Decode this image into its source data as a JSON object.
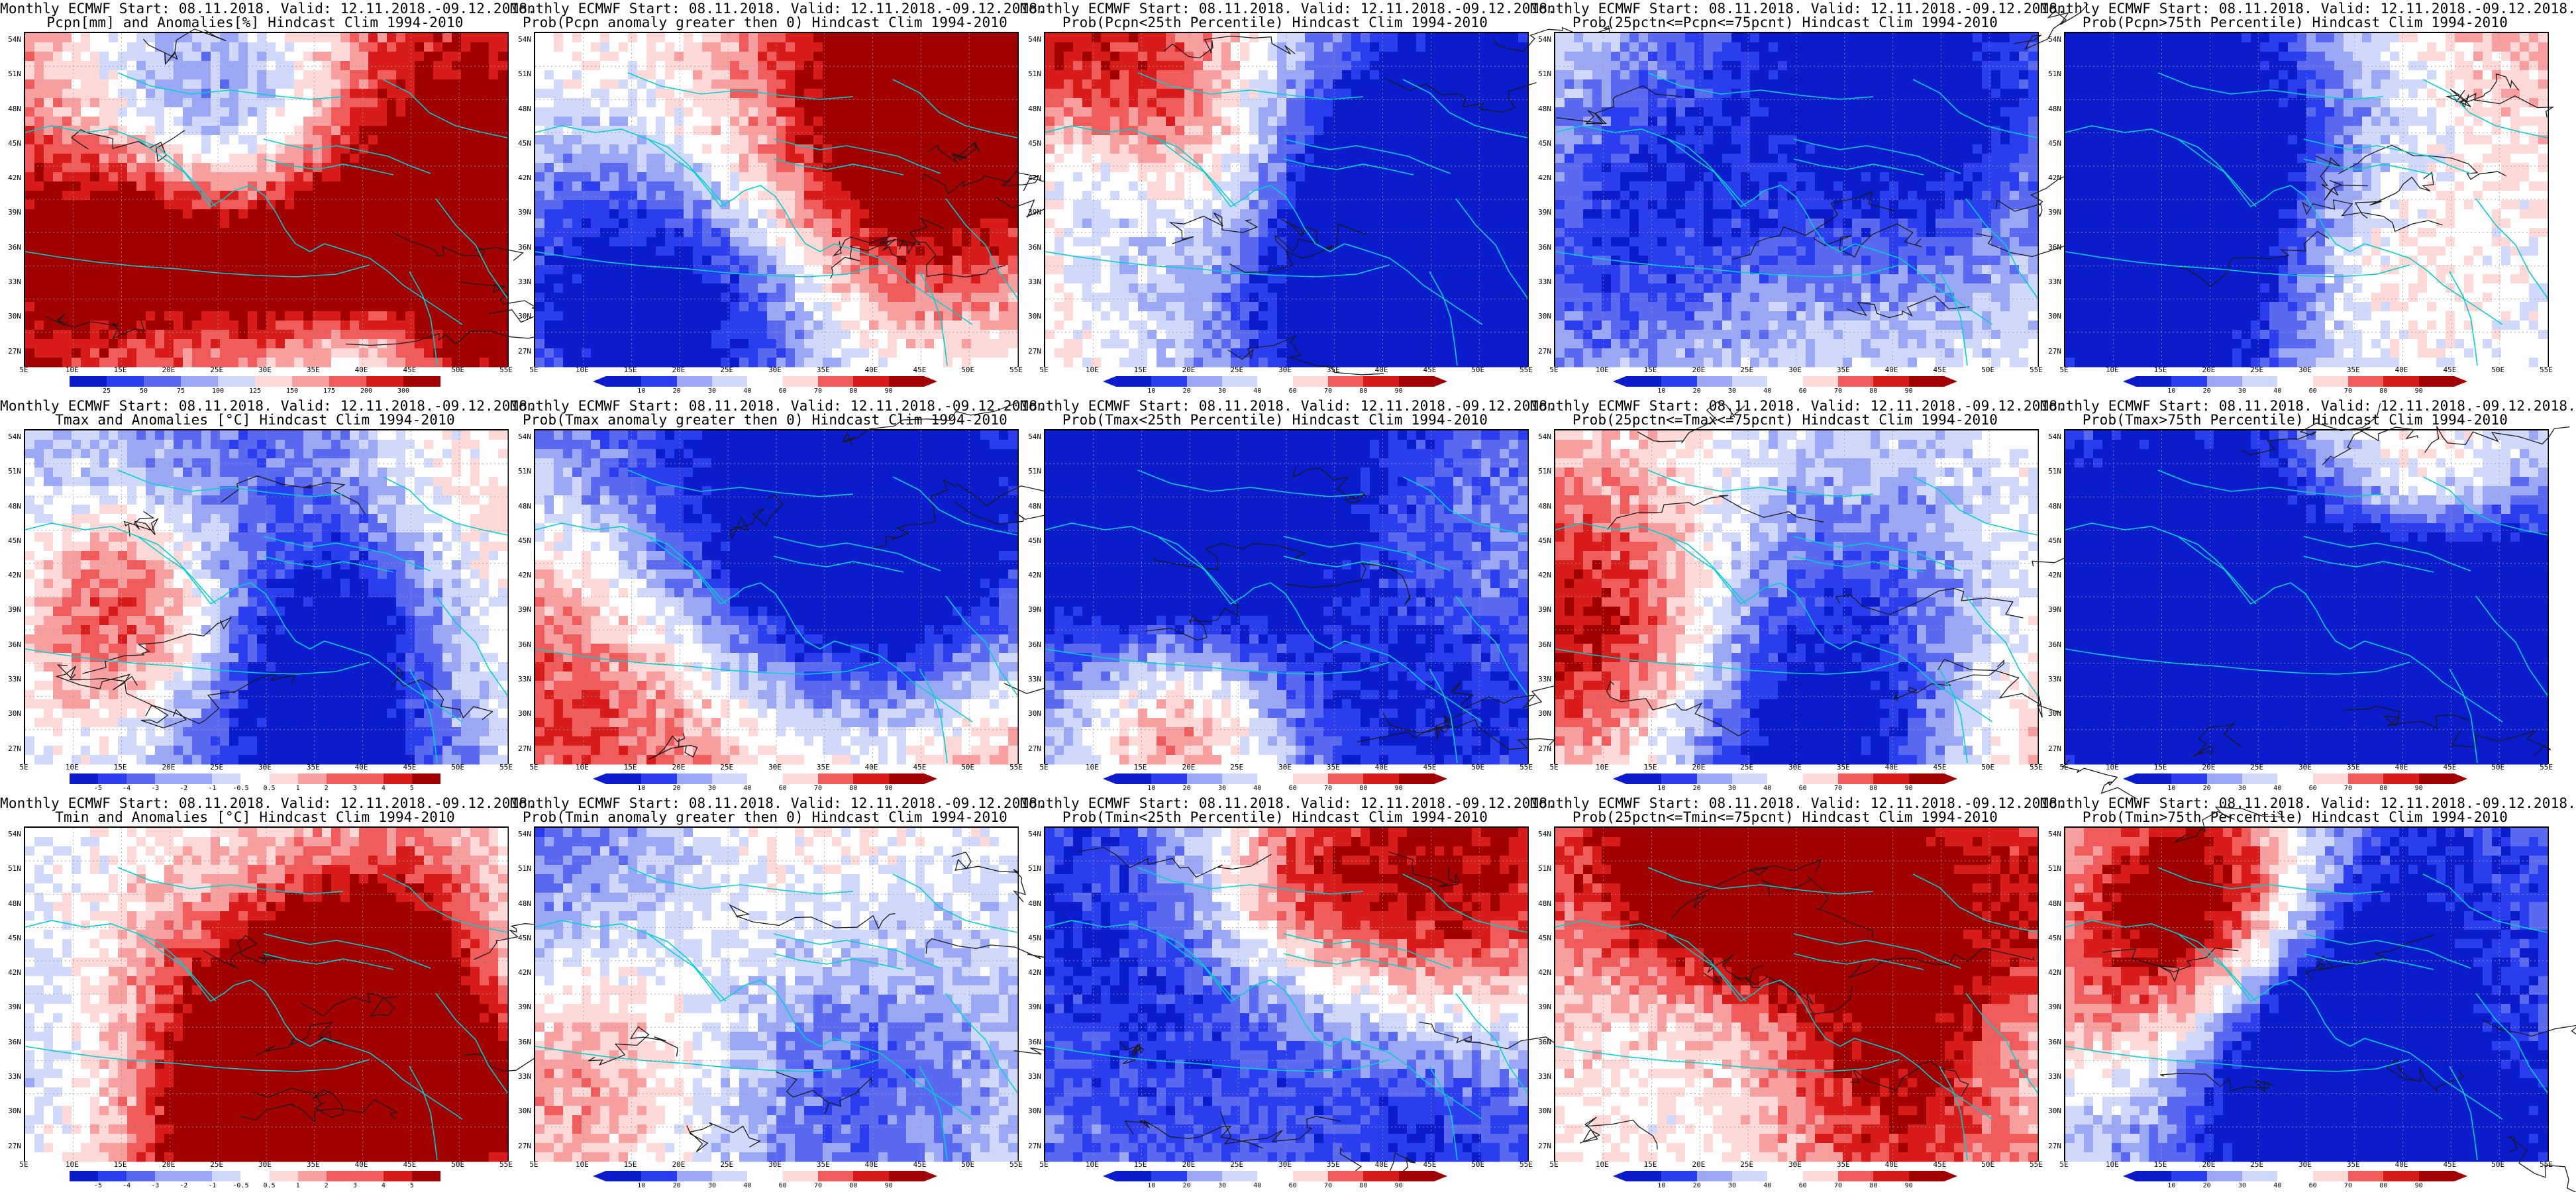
{
  "header_prefix": "Monthly ECMWF Start: 08.11.2018. Valid: 12.11.2018.-09.12.2018.",
  "lat_labels": [
    "54N",
    "51N",
    "48N",
    "45N",
    "42N",
    "39N",
    "36N",
    "33N",
    "30N",
    "27N"
  ],
  "lon_labels": [
    "5E",
    "10E",
    "15E",
    "20E",
    "25E",
    "30E",
    "35E",
    "40E",
    "45E",
    "50E",
    "55E"
  ],
  "colors": {
    "palette": [
      "#0a1ccc",
      "#2a3ef0",
      "#5a6af0",
      "#9aa8f6",
      "#d0d8fc",
      "#ffffff",
      "#ffd8d8",
      "#f8a0a0",
      "#f05c5c",
      "#d81c1c",
      "#a00000"
    ],
    "coast": "#00d0d0",
    "contour": "#1a1a1a"
  },
  "rows": [
    {
      "panels": [
        {
          "title": "Monthly ECMWF Start: 08.11.2018. Valid: 12.11.2018.-09.12.2018.",
          "subtitle": "Pcpn[mm] and Anomalies[%] Hindcast Clim 1994-2010",
          "bias": 0.55,
          "ticks": [
            "25",
            "50",
            "75",
            "100",
            "125",
            "150",
            "175",
            "200",
            "300"
          ],
          "tri": false
        },
        {
          "title": "Monthly ECMWF Start: 08.11.2018. Valid: 12.11.2018.-09.12.2018.",
          "subtitle": "Prob(Pcpn anomaly greater then 0) Hindcast Clim 1994-2010",
          "bias": 0.45,
          "ticks": [
            "10",
            "20",
            "30",
            "40",
            "60",
            "70",
            "80",
            "90"
          ],
          "tri": true
        },
        {
          "title": "Monthly ECMWF Start: 08.11.2018. Valid: 12.11.2018.-09.12.2018.",
          "subtitle": "Prob(Pcpn<25th Percentile) Hindcast Clim 1994-2010",
          "bias": -0.55,
          "ticks": [
            "10",
            "20",
            "30",
            "40",
            "60",
            "70",
            "80",
            "90"
          ],
          "tri": true
        },
        {
          "title": "Monthly ECMWF Start: 08.11.2018. Valid: 12.11.2018.-09.12.2018.",
          "subtitle": "Prob(25pctn<=Pcpn<=75pcnt) Hindcast Clim 1994-2010",
          "bias": 0.05,
          "ticks": [
            "10",
            "20",
            "30",
            "40",
            "60",
            "70",
            "80",
            "90"
          ],
          "tri": true
        },
        {
          "title": "Monthly ECMWF Start: 08.11.2018. Valid: 12.11.2018.-09.12.2018.",
          "subtitle": "Prob(Pcpn>75th Percentile) Hindcast Clim 1994-2010",
          "bias": 0.25,
          "ticks": [
            "10",
            "20",
            "30",
            "40",
            "60",
            "70",
            "80",
            "90"
          ],
          "tri": true
        }
      ]
    },
    {
      "panels": [
        {
          "title": "Monthly ECMWF Start: 08.11.2018. Valid: 12.11.2018.-09.12.2018.",
          "subtitle": "Tmax and Anomalies [°C] Hindcast Clim 1994-2010",
          "bias": -0.25,
          "ticks": [
            "-5",
            "-4",
            "-3",
            "-2",
            "-1",
            "-0.5",
            "0.5",
            "1",
            "2",
            "3",
            "4",
            "5"
          ],
          "tri": false
        },
        {
          "title": "Monthly ECMWF Start: 08.11.2018. Valid: 12.11.2018.-09.12.2018.",
          "subtitle": "Prob(Tmax anomaly greater then 0) Hindcast Clim 1994-2010",
          "bias": -0.2,
          "ticks": [
            "10",
            "20",
            "30",
            "40",
            "60",
            "70",
            "80",
            "90"
          ],
          "tri": true
        },
        {
          "title": "Monthly ECMWF Start: 08.11.2018. Valid: 12.11.2018.-09.12.2018.",
          "subtitle": "Prob(Tmax<25th Percentile) Hindcast Clim 1994-2010",
          "bias": -0.5,
          "ticks": [
            "10",
            "20",
            "30",
            "40",
            "60",
            "70",
            "80",
            "90"
          ],
          "tri": true
        },
        {
          "title": "Monthly ECMWF Start: 08.11.2018. Valid: 12.11.2018.-09.12.2018.",
          "subtitle": "Prob(25pctn<=Tmax<=75pcnt) Hindcast Clim 1994-2010",
          "bias": 0.1,
          "ticks": [
            "10",
            "20",
            "30",
            "40",
            "60",
            "70",
            "80",
            "90"
          ],
          "tri": true
        },
        {
          "title": "Monthly ECMWF Start: 08.11.2018. Valid: 12.11.2018.-09.12.2018.",
          "subtitle": "Prob(Tmax>75th Percentile) Hindcast Clim 1994-2010",
          "bias": -0.75,
          "ticks": [
            "10",
            "20",
            "30",
            "40",
            "60",
            "70",
            "80",
            "90"
          ],
          "tri": true
        }
      ]
    },
    {
      "panels": [
        {
          "title": "Monthly ECMWF Start: 08.11.2018. Valid: 12.11.2018.-09.12.2018.",
          "subtitle": "Tmin and Anomalies [°C] Hindcast Clim 1994-2010",
          "bias": -0.05,
          "ticks": [
            "-5",
            "-4",
            "-3",
            "-2",
            "-1",
            "-0.5",
            "0.5",
            "1",
            "2",
            "3",
            "4",
            "5"
          ],
          "tri": false
        },
        {
          "title": "Monthly ECMWF Start: 08.11.2018. Valid: 12.11.2018.-09.12.2018.",
          "subtitle": "Prob(Tmin anomaly greater then 0) Hindcast Clim 1994-2010",
          "bias": 0.05,
          "ticks": [
            "10",
            "20",
            "30",
            "40",
            "60",
            "70",
            "80",
            "90"
          ],
          "tri": true
        },
        {
          "title": "Monthly ECMWF Start: 08.11.2018. Valid: 12.11.2018.-09.12.2018.",
          "subtitle": "Prob(Tmin<25th Percentile) Hindcast Clim 1994-2010",
          "bias": -0.6,
          "ticks": [
            "10",
            "20",
            "30",
            "40",
            "60",
            "70",
            "80",
            "90"
          ],
          "tri": true
        },
        {
          "title": "Monthly ECMWF Start: 08.11.2018. Valid: 12.11.2018.-09.12.2018.",
          "subtitle": "Prob(25pctn<=Tmin<=75pcnt) Hindcast Clim 1994-2010",
          "bias": 0.3,
          "ticks": [
            "10",
            "20",
            "30",
            "40",
            "60",
            "70",
            "80",
            "90"
          ],
          "tri": true
        },
        {
          "title": "Monthly ECMWF Start: 08.11.2018. Valid: 12.11.2018.-09.12.2018.",
          "subtitle": "Prob(Tmin>75th Percentile) Hindcast Clim 1994-2010",
          "bias": -0.55,
          "ticks": [
            "10",
            "20",
            "30",
            "40",
            "60",
            "70",
            "80",
            "90"
          ],
          "tri": true
        }
      ]
    }
  ]
}
